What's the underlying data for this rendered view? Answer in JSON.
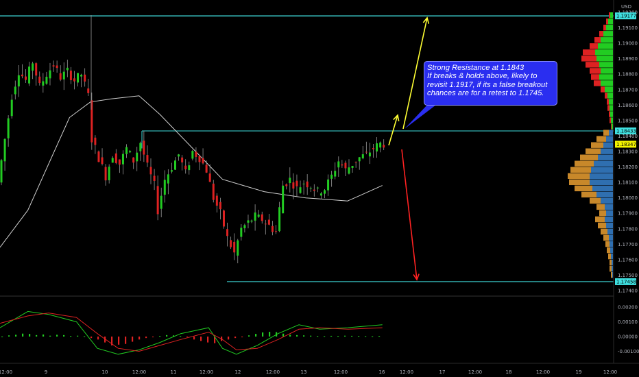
{
  "currency_label": "USD",
  "annotation": {
    "lines": [
      "Strong Resistance at 1.1843",
      "If breaks & holds above, likely to",
      "revisit 1.1917, if its a false breakout",
      "chances are for a retest to 1.1745."
    ]
  },
  "colors": {
    "up": "#22cc22",
    "down": "#dd2222",
    "level_line": "#40e0e0",
    "ma_line": "#d0d0d0",
    "arrow_up": "#ffff33",
    "arrow_down": "#ff2222",
    "vp_upper_up": "#22cc22",
    "vp_upper_down": "#dd2222",
    "vp_lower_buy": "#2f6fb0",
    "vp_lower_sell": "#c8882a",
    "callout_bg": "#2a2ef0"
  },
  "chart_data": {
    "type": "candlestick",
    "symbol_currency": "USD",
    "y_ticks": [
      "1.19200",
      "1.19100",
      "1.19000",
      "1.18900",
      "1.18800",
      "1.18700",
      "1.18600",
      "1.18500",
      "1.18400",
      "1.18300",
      "1.18200",
      "1.18100",
      "1.18000",
      "1.17900",
      "1.17800",
      "1.17700",
      "1.17600",
      "1.17500",
      "1.17400"
    ],
    "price_labels": [
      {
        "text": "1.19177",
        "value": 1.19177,
        "kind": "level"
      },
      {
        "text": "1.18433",
        "value": 1.18433,
        "kind": "level"
      },
      {
        "text": "1.18347",
        "value": 1.18347,
        "kind": "last"
      },
      {
        "text": "1.17458",
        "value": 1.17458,
        "kind": "level"
      }
    ],
    "x_ticks": [
      "12:00",
      "9",
      "10",
      "12:00",
      "11",
      "12:00",
      "12",
      "12:00",
      "13",
      "12:00",
      "16",
      "12:00",
      "17",
      "12:00",
      "18",
      "12:00",
      "19",
      "12:00"
    ],
    "indicator_y_ticks": [
      "0.00200",
      "0.00100",
      "0.00000",
      "-0.00100"
    ],
    "levels": [
      1.19177,
      1.18433,
      1.17458
    ],
    "resistance": 1.1843,
    "targets": {
      "upside": 1.1917,
      "downside": 1.1745
    },
    "price_path": [
      [
        0,
        1.181
      ],
      [
        2,
        1.1838
      ],
      [
        4,
        1.1866
      ],
      [
        6,
        1.1882
      ],
      [
        8,
        1.1876
      ],
      [
        10,
        1.1888
      ],
      [
        12,
        1.1872
      ],
      [
        14,
        1.188
      ],
      [
        16,
        1.1886
      ],
      [
        18,
        1.1878
      ],
      [
        20,
        1.1882
      ],
      [
        22,
        1.1876
      ],
      [
        24,
        1.188
      ],
      [
        26,
        1.1866
      ],
      [
        27,
        1.1838
      ],
      [
        29,
        1.1826
      ],
      [
        31,
        1.1814
      ],
      [
        33,
        1.1828
      ],
      [
        35,
        1.1822
      ],
      [
        37,
        1.1832
      ],
      [
        39,
        1.1824
      ],
      [
        41,
        1.1836
      ],
      [
        43,
        1.182
      ],
      [
        45,
        1.1808
      ],
      [
        46,
        1.1792
      ],
      [
        48,
        1.1812
      ],
      [
        50,
        1.182
      ],
      [
        52,
        1.1828
      ],
      [
        54,
        1.1816
      ],
      [
        56,
        1.183
      ],
      [
        58,
        1.1826
      ],
      [
        60,
        1.1818
      ],
      [
        62,
        1.18
      ],
      [
        64,
        1.179
      ],
      [
        66,
        1.1774
      ],
      [
        68,
        1.1764
      ],
      [
        70,
        1.178
      ],
      [
        72,
        1.1784
      ],
      [
        74,
        1.1788
      ],
      [
        76,
        1.1786
      ],
      [
        78,
        1.1782
      ],
      [
        80,
        1.1778
      ],
      [
        82,
        1.1808
      ],
      [
        84,
        1.1812
      ],
      [
        86,
        1.1806
      ],
      [
        88,
        1.181
      ],
      [
        90,
        1.1808
      ],
      [
        92,
        1.1804
      ],
      [
        94,
        1.1806
      ],
      [
        96,
        1.1814
      ],
      [
        98,
        1.1824
      ],
      [
        100,
        1.1818
      ],
      [
        102,
        1.1822
      ],
      [
        104,
        1.1826
      ],
      [
        106,
        1.1828
      ],
      [
        108,
        1.1832
      ],
      [
        110,
        1.1835
      ]
    ],
    "ma_path": [
      [
        0,
        1.1768
      ],
      [
        8,
        1.1792
      ],
      [
        14,
        1.1822
      ],
      [
        20,
        1.1852
      ],
      [
        26,
        1.1862
      ],
      [
        32,
        1.1864
      ],
      [
        40,
        1.1866
      ],
      [
        46,
        1.1854
      ],
      [
        52,
        1.184
      ],
      [
        58,
        1.1826
      ],
      [
        64,
        1.1812
      ],
      [
        70,
        1.1808
      ],
      [
        76,
        1.1804
      ],
      [
        82,
        1.1802
      ],
      [
        88,
        1.18
      ],
      [
        94,
        1.1799
      ],
      [
        100,
        1.1798
      ],
      [
        104,
        1.1802
      ],
      [
        110,
        1.1808
      ]
    ],
    "macd_hist": [
      0,
      8e-05,
      0.00012,
      0.0002,
      0.00018,
      0.0001,
      0.00014,
      6e-05,
      0.00012,
      0.0001,
      4e-05,
      6e-05,
      2e-05,
      -0.0001,
      -0.0002,
      -0.0004,
      -0.0006,
      -0.00055,
      -0.0005,
      -0.00035,
      -0.0002,
      -0.0001,
      -5e-05,
      4e-05,
      0.0001,
      8e-05,
      4e-05,
      -5e-05,
      -0.0002,
      -0.0003,
      -0.0004,
      -0.00045,
      -0.0003,
      -0.0002,
      -0.0001,
      -5e-05,
      8e-05,
      0.00018,
      0.00028,
      0.00032,
      0.0003,
      0.0002,
      0.00012,
      0.0001,
      8e-05,
      6e-05,
      4e-05,
      3e-05,
      5e-05,
      4e-05,
      6e-05,
      5e-05,
      4e-05,
      3e-05,
      2e-05,
      4e-05
    ],
    "macd_line": [
      [
        0,
        0.0006
      ],
      [
        8,
        0.0017
      ],
      [
        14,
        0.0015
      ],
      [
        22,
        0.001
      ],
      [
        28,
        -0.0008
      ],
      [
        34,
        -0.0012
      ],
      [
        40,
        -0.0009
      ],
      [
        46,
        -0.0004
      ],
      [
        52,
        0.0002
      ],
      [
        60,
        0.0006
      ],
      [
        64,
        -0.0008
      ],
      [
        68,
        -0.0012
      ],
      [
        74,
        -0.0006
      ],
      [
        80,
        0.0002
      ],
      [
        86,
        0.0008
      ],
      [
        92,
        0.0005
      ],
      [
        100,
        0.0006
      ],
      [
        110,
        0.0008
      ]
    ],
    "signal_line": [
      [
        0,
        0.0009
      ],
      [
        8,
        0.0014
      ],
      [
        14,
        0.0016
      ],
      [
        22,
        0.0013
      ],
      [
        28,
        0.0002
      ],
      [
        34,
        -0.0008
      ],
      [
        40,
        -0.001
      ],
      [
        46,
        -0.0006
      ],
      [
        52,
        -0.0002
      ],
      [
        60,
        0.0003
      ],
      [
        64,
        -0.0002
      ],
      [
        68,
        -0.0009
      ],
      [
        74,
        -0.0008
      ],
      [
        80,
        -0.0002
      ],
      [
        86,
        0.0005
      ],
      [
        92,
        0.0006
      ],
      [
        100,
        0.0005
      ],
      [
        110,
        0.0006
      ]
    ],
    "volume_profile": {
      "upper": [
        [
          1.1918,
          4,
          2
        ],
        [
          1.1914,
          7,
          3
        ],
        [
          1.191,
          10,
          4
        ],
        [
          1.1906,
          14,
          6
        ],
        [
          1.1902,
          18,
          9
        ],
        [
          1.1898,
          22,
          12
        ],
        [
          1.1894,
          26,
          18
        ],
        [
          1.189,
          24,
          22
        ],
        [
          1.1886,
          20,
          20
        ],
        [
          1.1882,
          18,
          16
        ],
        [
          1.1878,
          20,
          12
        ],
        [
          1.1874,
          18,
          10
        ],
        [
          1.187,
          12,
          6
        ],
        [
          1.1866,
          8,
          4
        ],
        [
          1.1862,
          6,
          3
        ],
        [
          1.1858,
          5,
          3
        ],
        [
          1.1854,
          4,
          2
        ],
        [
          1.185,
          3,
          2
        ],
        [
          1.1846,
          2,
          1
        ]
      ],
      "lower": [
        [
          1.1842,
          8,
          6
        ],
        [
          1.1838,
          14,
          10
        ],
        [
          1.1834,
          18,
          14
        ],
        [
          1.183,
          22,
          18
        ],
        [
          1.1826,
          26,
          22
        ],
        [
          1.1822,
          28,
          28
        ],
        [
          1.1818,
          30,
          32
        ],
        [
          1.1814,
          32,
          34
        ],
        [
          1.181,
          30,
          34
        ],
        [
          1.1806,
          26,
          30
        ],
        [
          1.1802,
          22,
          24
        ],
        [
          1.1798,
          16,
          18
        ],
        [
          1.1794,
          12,
          12
        ],
        [
          1.179,
          10,
          10
        ],
        [
          1.1786,
          14,
          12
        ],
        [
          1.1782,
          12,
          10
        ],
        [
          1.1778,
          10,
          8
        ],
        [
          1.1774,
          8,
          6
        ],
        [
          1.177,
          6,
          5
        ],
        [
          1.1766,
          5,
          4
        ],
        [
          1.1762,
          4,
          3
        ],
        [
          1.1758,
          3,
          2
        ],
        [
          1.1754,
          3,
          2
        ],
        [
          1.175,
          2,
          1
        ]
      ]
    }
  }
}
